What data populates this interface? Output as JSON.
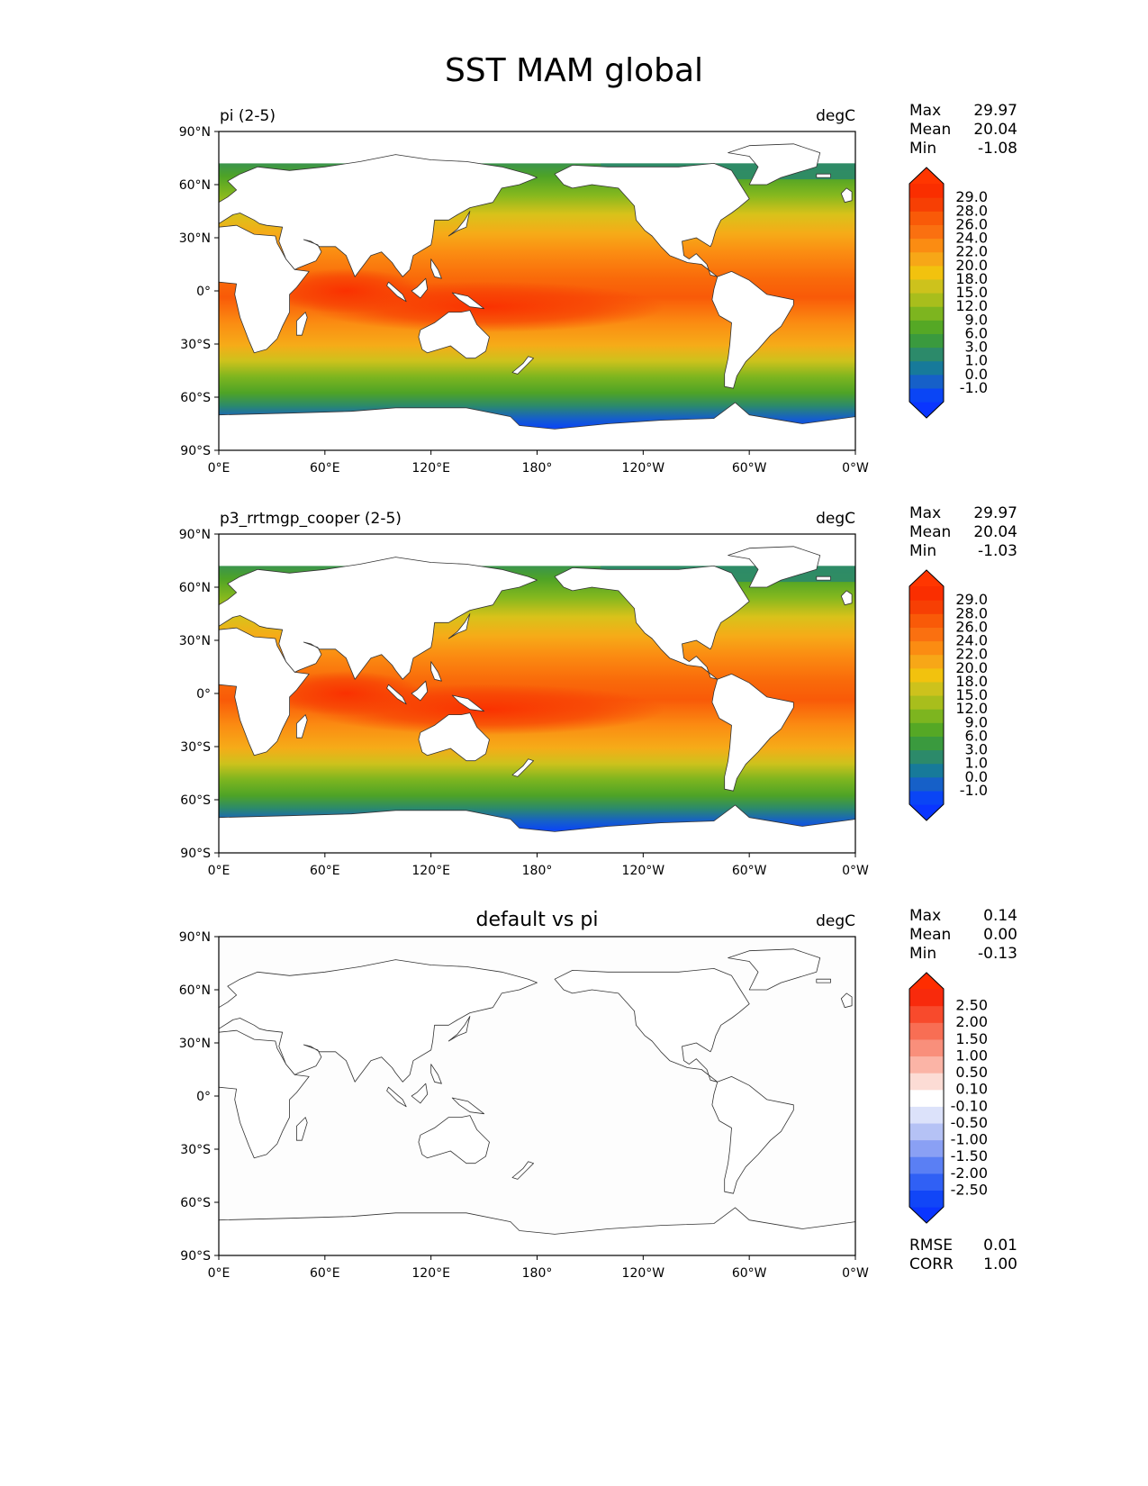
{
  "figure": {
    "title": "SST MAM global"
  },
  "axes": {
    "lat_labels": [
      "90°N",
      "60°N",
      "30°N",
      "0°",
      "30°S",
      "60°S",
      "90°S"
    ],
    "lon_labels": [
      "0°E",
      "60°E",
      "120°E",
      "180°",
      "120°W",
      "60°W",
      "0°W"
    ]
  },
  "panels": [
    {
      "name": "pi",
      "left_title": "pi (2-5)",
      "center_title": "",
      "units": "degC",
      "kind": "field",
      "stats": {
        "max_label": "Max",
        "max": "29.97",
        "mean_label": "Mean",
        "mean": "20.04",
        "min_label": "Min",
        "min": "-1.08"
      },
      "colorbar": {
        "ticks": [
          "29.0",
          "28.0",
          "26.0",
          "24.0",
          "22.0",
          "20.0",
          "18.0",
          "15.0",
          "12.0",
          "9.0",
          "6.0",
          "3.0",
          "1.0",
          "0.0",
          "-1.0"
        ],
        "colors": [
          "#0a45f5",
          "#1660c8",
          "#177a9a",
          "#2c8a6a",
          "#3a9a3e",
          "#55a825",
          "#7db51f",
          "#a8be1c",
          "#cdc21c",
          "#f2c20e",
          "#f7a717",
          "#fb8c12",
          "#fa7010",
          "#f95a08",
          "#f73f04",
          "#fa2e00"
        ],
        "top_color": "#ff3600",
        "bottom_color": "#0a35ff"
      },
      "extras": []
    },
    {
      "name": "p3",
      "left_title": "p3_rrtmgp_cooper (2-5)",
      "center_title": "",
      "units": "degC",
      "kind": "field",
      "stats": {
        "max_label": "Max",
        "max": "29.97",
        "mean_label": "Mean",
        "mean": "20.04",
        "min_label": "Min",
        "min": "-1.03"
      },
      "colorbar": {
        "ticks": [
          "29.0",
          "28.0",
          "26.0",
          "24.0",
          "22.0",
          "20.0",
          "18.0",
          "15.0",
          "12.0",
          "9.0",
          "6.0",
          "3.0",
          "1.0",
          "0.0",
          "-1.0"
        ],
        "colors": [
          "#0a45f5",
          "#1660c8",
          "#177a9a",
          "#2c8a6a",
          "#3a9a3e",
          "#55a825",
          "#7db51f",
          "#a8be1c",
          "#cdc21c",
          "#f2c20e",
          "#f7a717",
          "#fb8c12",
          "#fa7010",
          "#f95a08",
          "#f73f04",
          "#fa2e00"
        ],
        "top_color": "#ff3600",
        "bottom_color": "#0a35ff"
      },
      "extras": []
    },
    {
      "name": "diff",
      "left_title": "",
      "center_title": "default vs pi",
      "units": "degC",
      "kind": "diff",
      "stats": {
        "max_label": "Max",
        "max": "0.14",
        "mean_label": "Mean",
        "mean": "0.00",
        "min_label": "Min",
        "min": "-0.13"
      },
      "colorbar": {
        "ticks": [
          "2.50",
          "2.00",
          "1.50",
          "1.00",
          "0.50",
          "0.10",
          "-0.10",
          "-0.50",
          "-1.00",
          "-1.50",
          "-2.00",
          "-2.50"
        ],
        "colors": [
          "#1146f7",
          "#3060f5",
          "#5a7ff4",
          "#8aa0f4",
          "#b5c2f5",
          "#dce2fa",
          "#ffffff",
          "#fcdcd5",
          "#fbb4a6",
          "#f98f7b",
          "#f86e54",
          "#f84a2c",
          "#f82a0c"
        ],
        "top_color": "#ff2d00",
        "bottom_color": "#0a35ff"
      },
      "extras": [
        {
          "label": "RMSE",
          "value": "0.01"
        },
        {
          "label": "CORR",
          "value": "1.00"
        }
      ]
    }
  ]
}
